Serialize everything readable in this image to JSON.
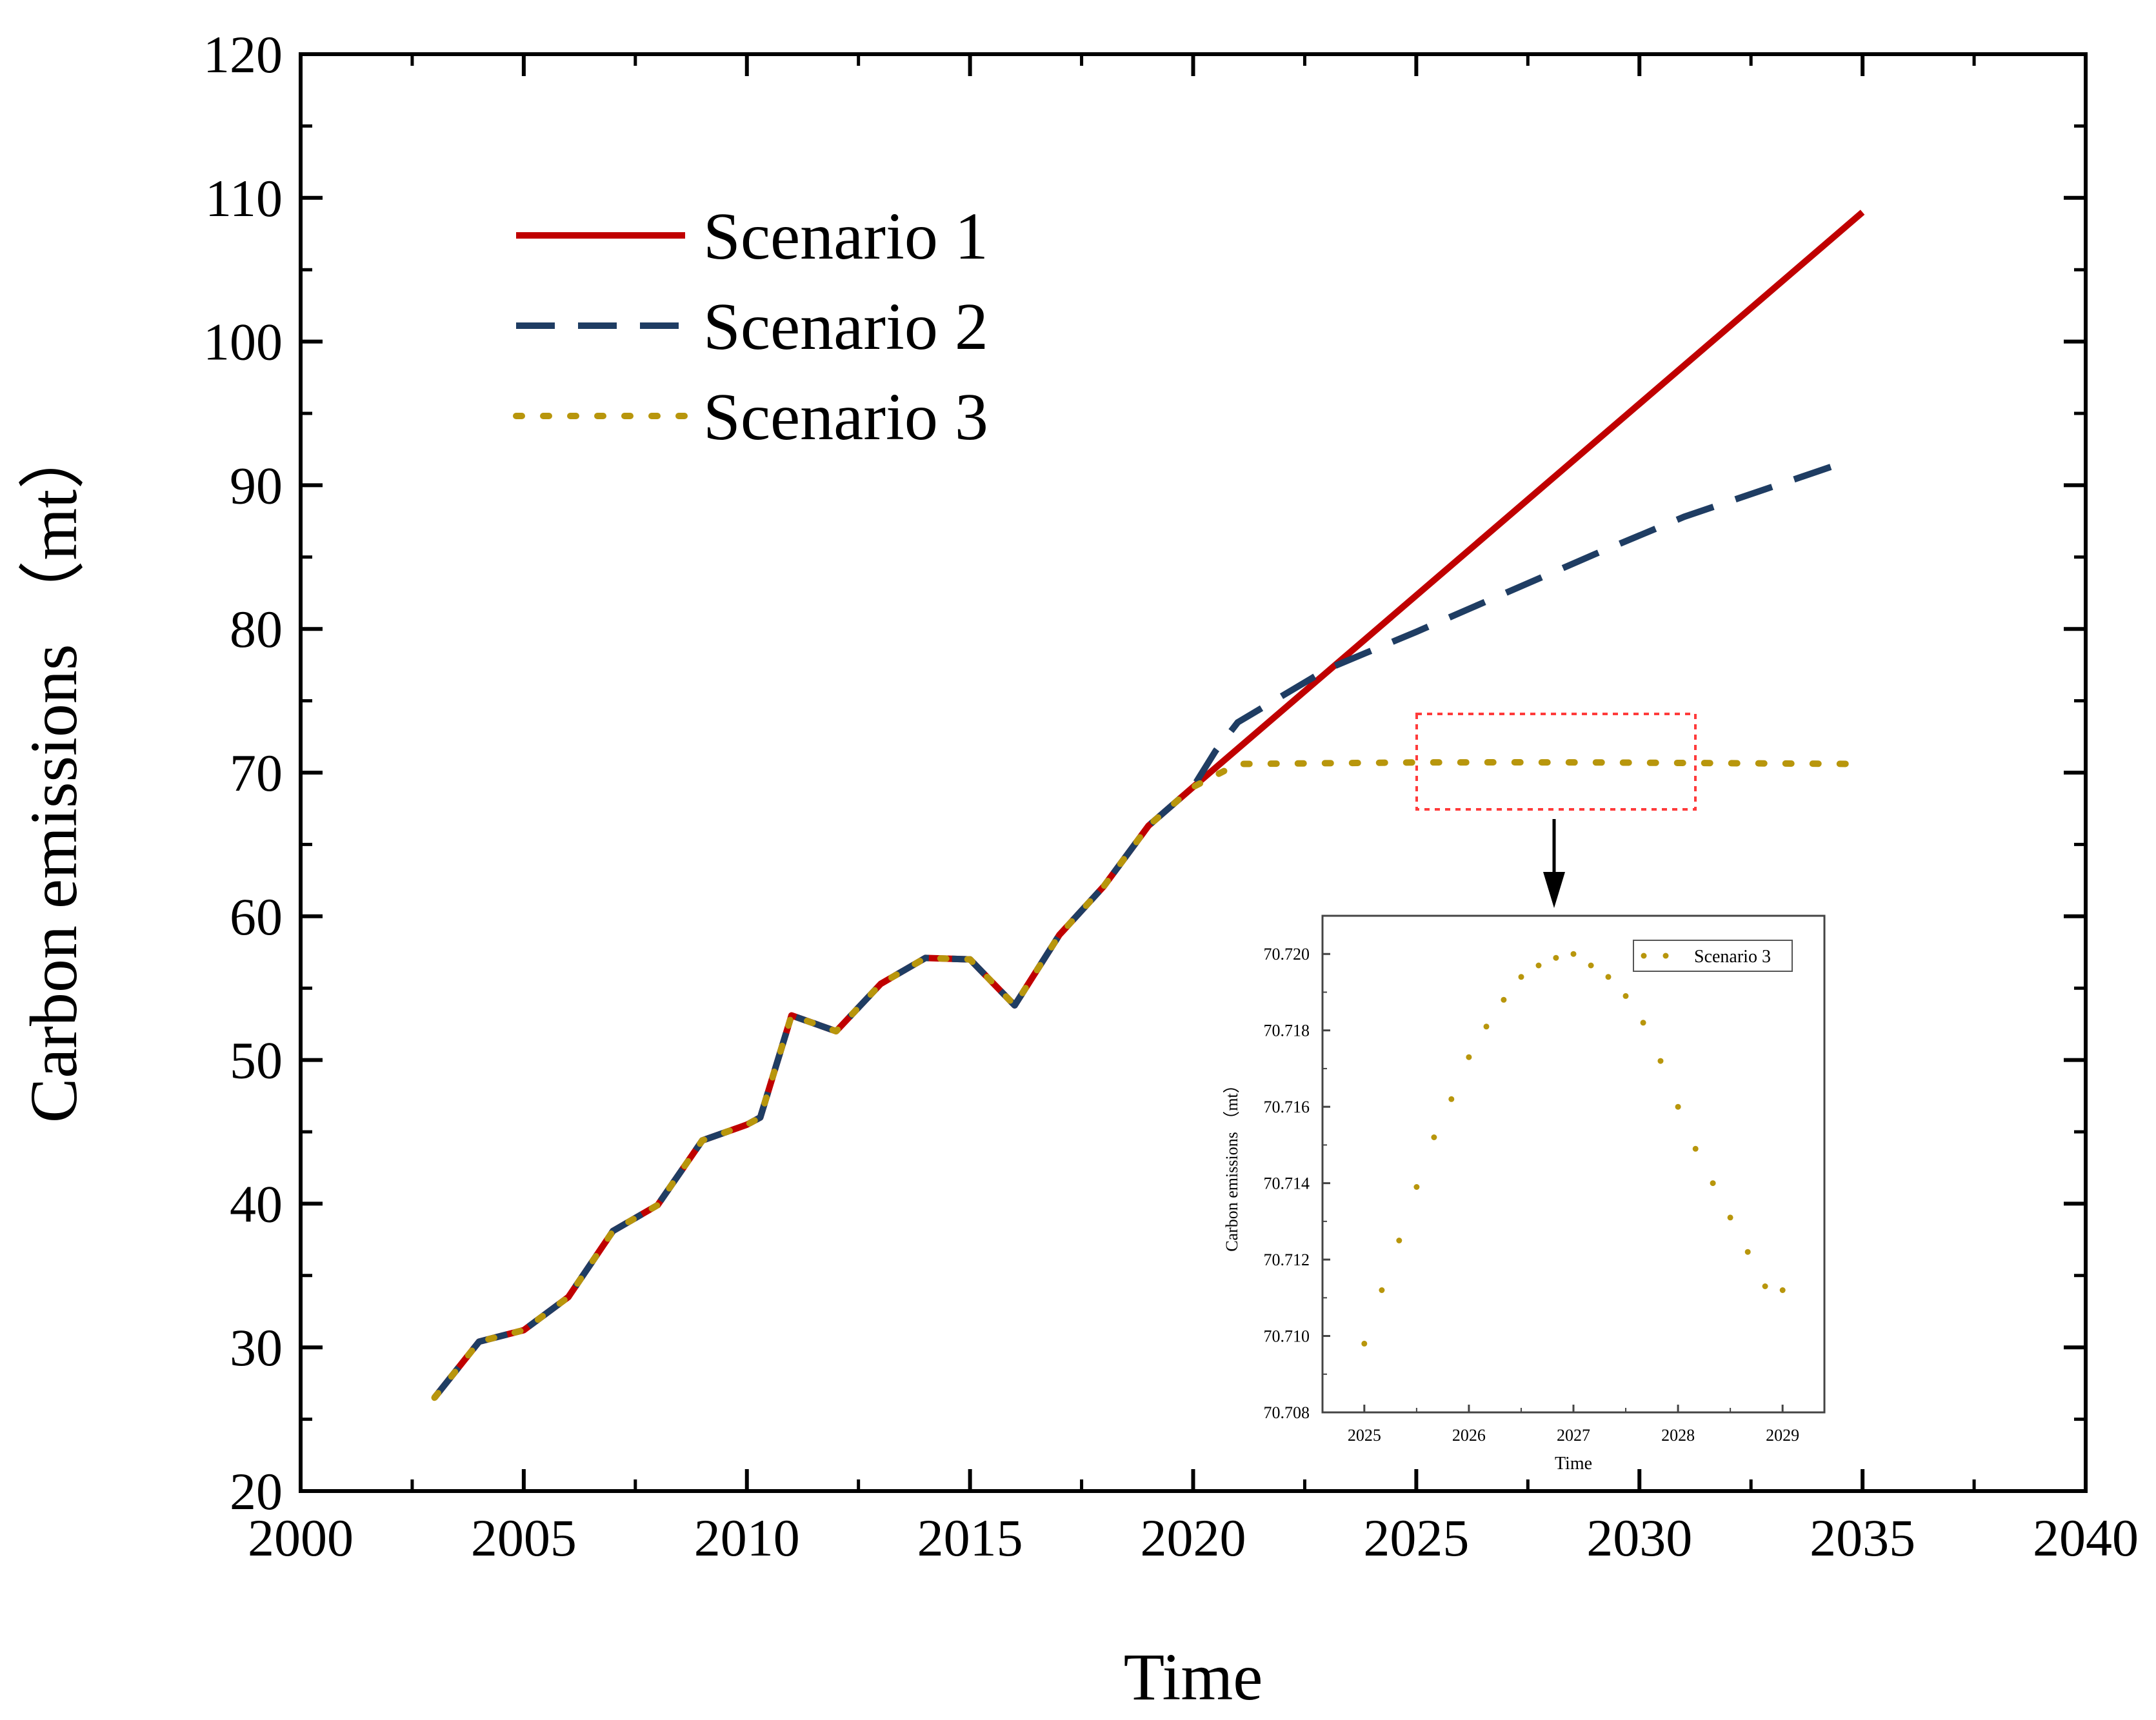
{
  "chart_data": [
    {
      "type": "line",
      "title": "",
      "xlabel": "Time",
      "ylabel": "Carbon emissions （mt）",
      "xlim": [
        2000,
        2040
      ],
      "ylim": [
        20,
        120
      ],
      "xticks": [
        "2000",
        "2005",
        "2010",
        "2015",
        "2020",
        "2025",
        "2030",
        "2035",
        "2040"
      ],
      "yticks": [
        "20",
        "30",
        "40",
        "50",
        "60",
        "70",
        "80",
        "90",
        "100",
        "110",
        "120"
      ],
      "legend": "top-left",
      "series": [
        {
          "name": "Scenario 1",
          "color": "#c00000",
          "style": "solid",
          "x": [
            2003,
            2004,
            2005,
            2006,
            2007,
            2008,
            2009,
            2010,
            2010.3,
            2011,
            2012,
            2013,
            2014,
            2015,
            2016,
            2017,
            2018,
            2019,
            2020,
            2035
          ],
          "y": [
            26.5,
            30.4,
            31.2,
            33.5,
            38.1,
            39.9,
            44.4,
            45.5,
            46.0,
            53.1,
            52.0,
            55.3,
            57.1,
            57.0,
            53.8,
            58.7,
            62.1,
            66.3,
            69.0,
            109.0
          ]
        },
        {
          "name": "Scenario 2",
          "color": "#1f3d63",
          "style": "dashed",
          "x": [
            2003,
            2004,
            2005,
            2006,
            2007,
            2008,
            2009,
            2010,
            2010.3,
            2011,
            2012,
            2013,
            2014,
            2015,
            2016,
            2017,
            2018,
            2019,
            2020,
            2020.5,
            2021,
            2023,
            2025,
            2027,
            2029,
            2031,
            2034.5
          ],
          "y": [
            26.5,
            30.4,
            31.2,
            33.5,
            38.1,
            39.9,
            44.4,
            45.5,
            46.0,
            53.1,
            52.0,
            55.3,
            57.1,
            57.0,
            53.8,
            58.7,
            62.1,
            66.3,
            69.0,
            71.5,
            73.5,
            77.2,
            79.8,
            82.5,
            85.2,
            87.8,
            91.5
          ]
        },
        {
          "name": "Scenario 3",
          "color": "#b8960c",
          "style": "dotted",
          "x": [
            2003,
            2004,
            2005,
            2006,
            2007,
            2008,
            2009,
            2010,
            2010.3,
            2011,
            2012,
            2013,
            2014,
            2015,
            2016,
            2017,
            2018,
            2019,
            2020,
            2021,
            2025,
            2027,
            2029,
            2035
          ],
          "y": [
            26.5,
            30.4,
            31.2,
            33.5,
            38.1,
            39.9,
            44.4,
            45.5,
            46.0,
            53.1,
            52.0,
            55.3,
            57.1,
            57.0,
            53.8,
            58.7,
            62.1,
            66.3,
            69.0,
            70.6,
            70.71,
            70.72,
            70.711,
            70.6
          ]
        }
      ],
      "annotations": [
        "zoom-box around 2025–2029 at ~70.7 with arrow pointing to inset"
      ]
    },
    {
      "type": "scatter",
      "title": "",
      "xlabel": "Time",
      "ylabel": "Carbon emissions （mt）",
      "xlim": [
        2024.6,
        2029.4
      ],
      "ylim": [
        70.708,
        70.721
      ],
      "xticks": [
        "2025",
        "2026",
        "2027",
        "2028",
        "2029"
      ],
      "yticks": [
        "70.708",
        "70.710",
        "70.712",
        "70.714",
        "70.716",
        "70.718",
        "70.720"
      ],
      "legend": "top-right",
      "series": [
        {
          "name": "Scenario 3",
          "color": "#b8960c",
          "x": [
            2025.0,
            2025.167,
            2025.333,
            2025.5,
            2025.667,
            2025.833,
            2026.0,
            2026.167,
            2026.333,
            2026.5,
            2026.667,
            2026.833,
            2027.0,
            2027.167,
            2027.333,
            2027.5,
            2027.667,
            2027.833,
            2028.0,
            2028.167,
            2028.333,
            2028.5,
            2028.667,
            2028.833,
            2029.0
          ],
          "y": [
            70.7098,
            70.7112,
            70.7125,
            70.7139,
            70.7152,
            70.7162,
            70.7173,
            70.7181,
            70.7188,
            70.7194,
            70.7197,
            70.7199,
            70.72,
            70.7197,
            70.7194,
            70.7189,
            70.7182,
            70.7172,
            70.716,
            70.7149,
            70.714,
            70.7131,
            70.7122,
            70.7113,
            70.7112
          ]
        }
      ]
    }
  ]
}
